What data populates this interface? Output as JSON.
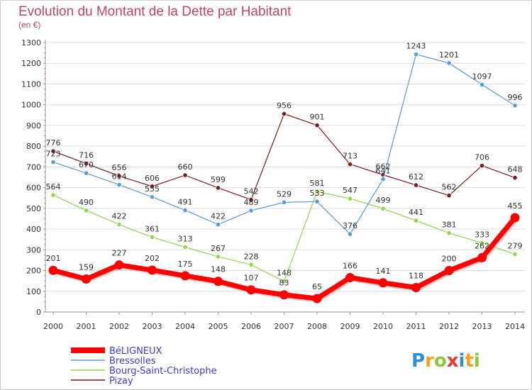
{
  "chart_data": {
    "type": "line",
    "title": "Evolution du Montant de la Dette par Habitant",
    "subtitle": "(en €)",
    "xlabel": "",
    "ylabel": "",
    "ylim": [
      0,
      1300
    ],
    "y_ticks": [
      0,
      100,
      200,
      300,
      400,
      500,
      600,
      700,
      800,
      900,
      1000,
      1100,
      1200,
      1300
    ],
    "x": [
      "2000",
      "2001",
      "2002",
      "2003",
      "2004",
      "2005",
      "2006",
      "2007",
      "2008",
      "2009",
      "2010",
      "2011",
      "2012",
      "2013",
      "2014"
    ],
    "grid": "horizontal",
    "legend_position": "bottom-left",
    "series": [
      {
        "name": "Pizay",
        "color": "#7a1c1c",
        "emphasis": false,
        "values": [
          776,
          716,
          656,
          606,
          660,
          599,
          542,
          956,
          901,
          713,
          662,
          612,
          562,
          706,
          648
        ]
      },
      {
        "name": "Bourg-Saint-Christophe",
        "color": "#8ed84f",
        "emphasis": false,
        "values": [
          564,
          490,
          422,
          361,
          313,
          267,
          228,
          148,
          581,
          547,
          499,
          441,
          381,
          333,
          279
        ]
      },
      {
        "name": "Bressolles",
        "color": "#5a9ad6",
        "emphasis": false,
        "values": [
          723,
          670,
          614,
          555,
          491,
          422,
          489,
          529,
          533,
          376,
          641,
          1243,
          1201,
          1097,
          996
        ]
      },
      {
        "name": "BéLIGNEUX",
        "color": "#ff0000",
        "emphasis": true,
        "values": [
          201,
          159,
          227,
          202,
          175,
          148,
          107,
          83,
          65,
          166,
          141,
          118,
          200,
          262,
          455
        ]
      }
    ]
  },
  "brand": {
    "letters": [
      "P",
      "r",
      "o",
      "x",
      "i",
      "t",
      "i"
    ],
    "colors": [
      "#2e8fd8",
      "#f2a21b",
      "#8cc63f",
      "#e8392d",
      "#2e8fd8",
      "#f2a21b",
      "#8cc63f"
    ]
  }
}
